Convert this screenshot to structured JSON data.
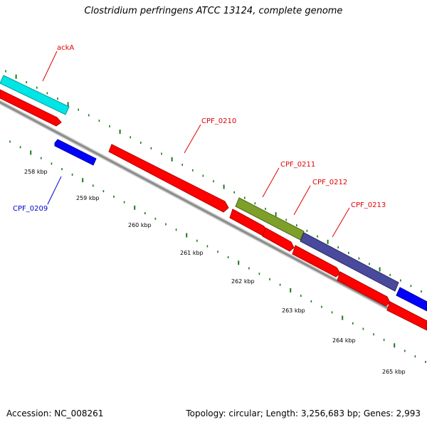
{
  "title": "Clostridium perfringens ATCC 13124, complete genome",
  "footer": {
    "accession": "Accession: NC_008261",
    "summary": "Topology: circular; Length: 3,256,683 bp; Genes: 2,993"
  },
  "colors": {
    "red": "#ff0000",
    "cyan": "#00ffff",
    "blue": "#0000ff",
    "olive": "#7f9f2b",
    "slate": "#4a4a9c",
    "backbone": "#8c8c8c",
    "tick": "#1a7a1a",
    "label_red": "#e00000",
    "label_blue": "#0000cc"
  },
  "genes": [
    {
      "name": "ackA",
      "color": "red"
    },
    {
      "name": "CPF_0209",
      "color": "blue"
    },
    {
      "name": "CPF_0210",
      "color": "red"
    },
    {
      "name": "CPF_0211",
      "color": "red"
    },
    {
      "name": "CPF_0212",
      "color": "red"
    },
    {
      "name": "CPF_0213",
      "color": "red"
    }
  ],
  "scale_labels": [
    "258 kbp",
    "259 kbp",
    "260 kbp",
    "261 kbp",
    "262 kbp",
    "263 kbp",
    "264 kbp",
    "265 kbp"
  ]
}
